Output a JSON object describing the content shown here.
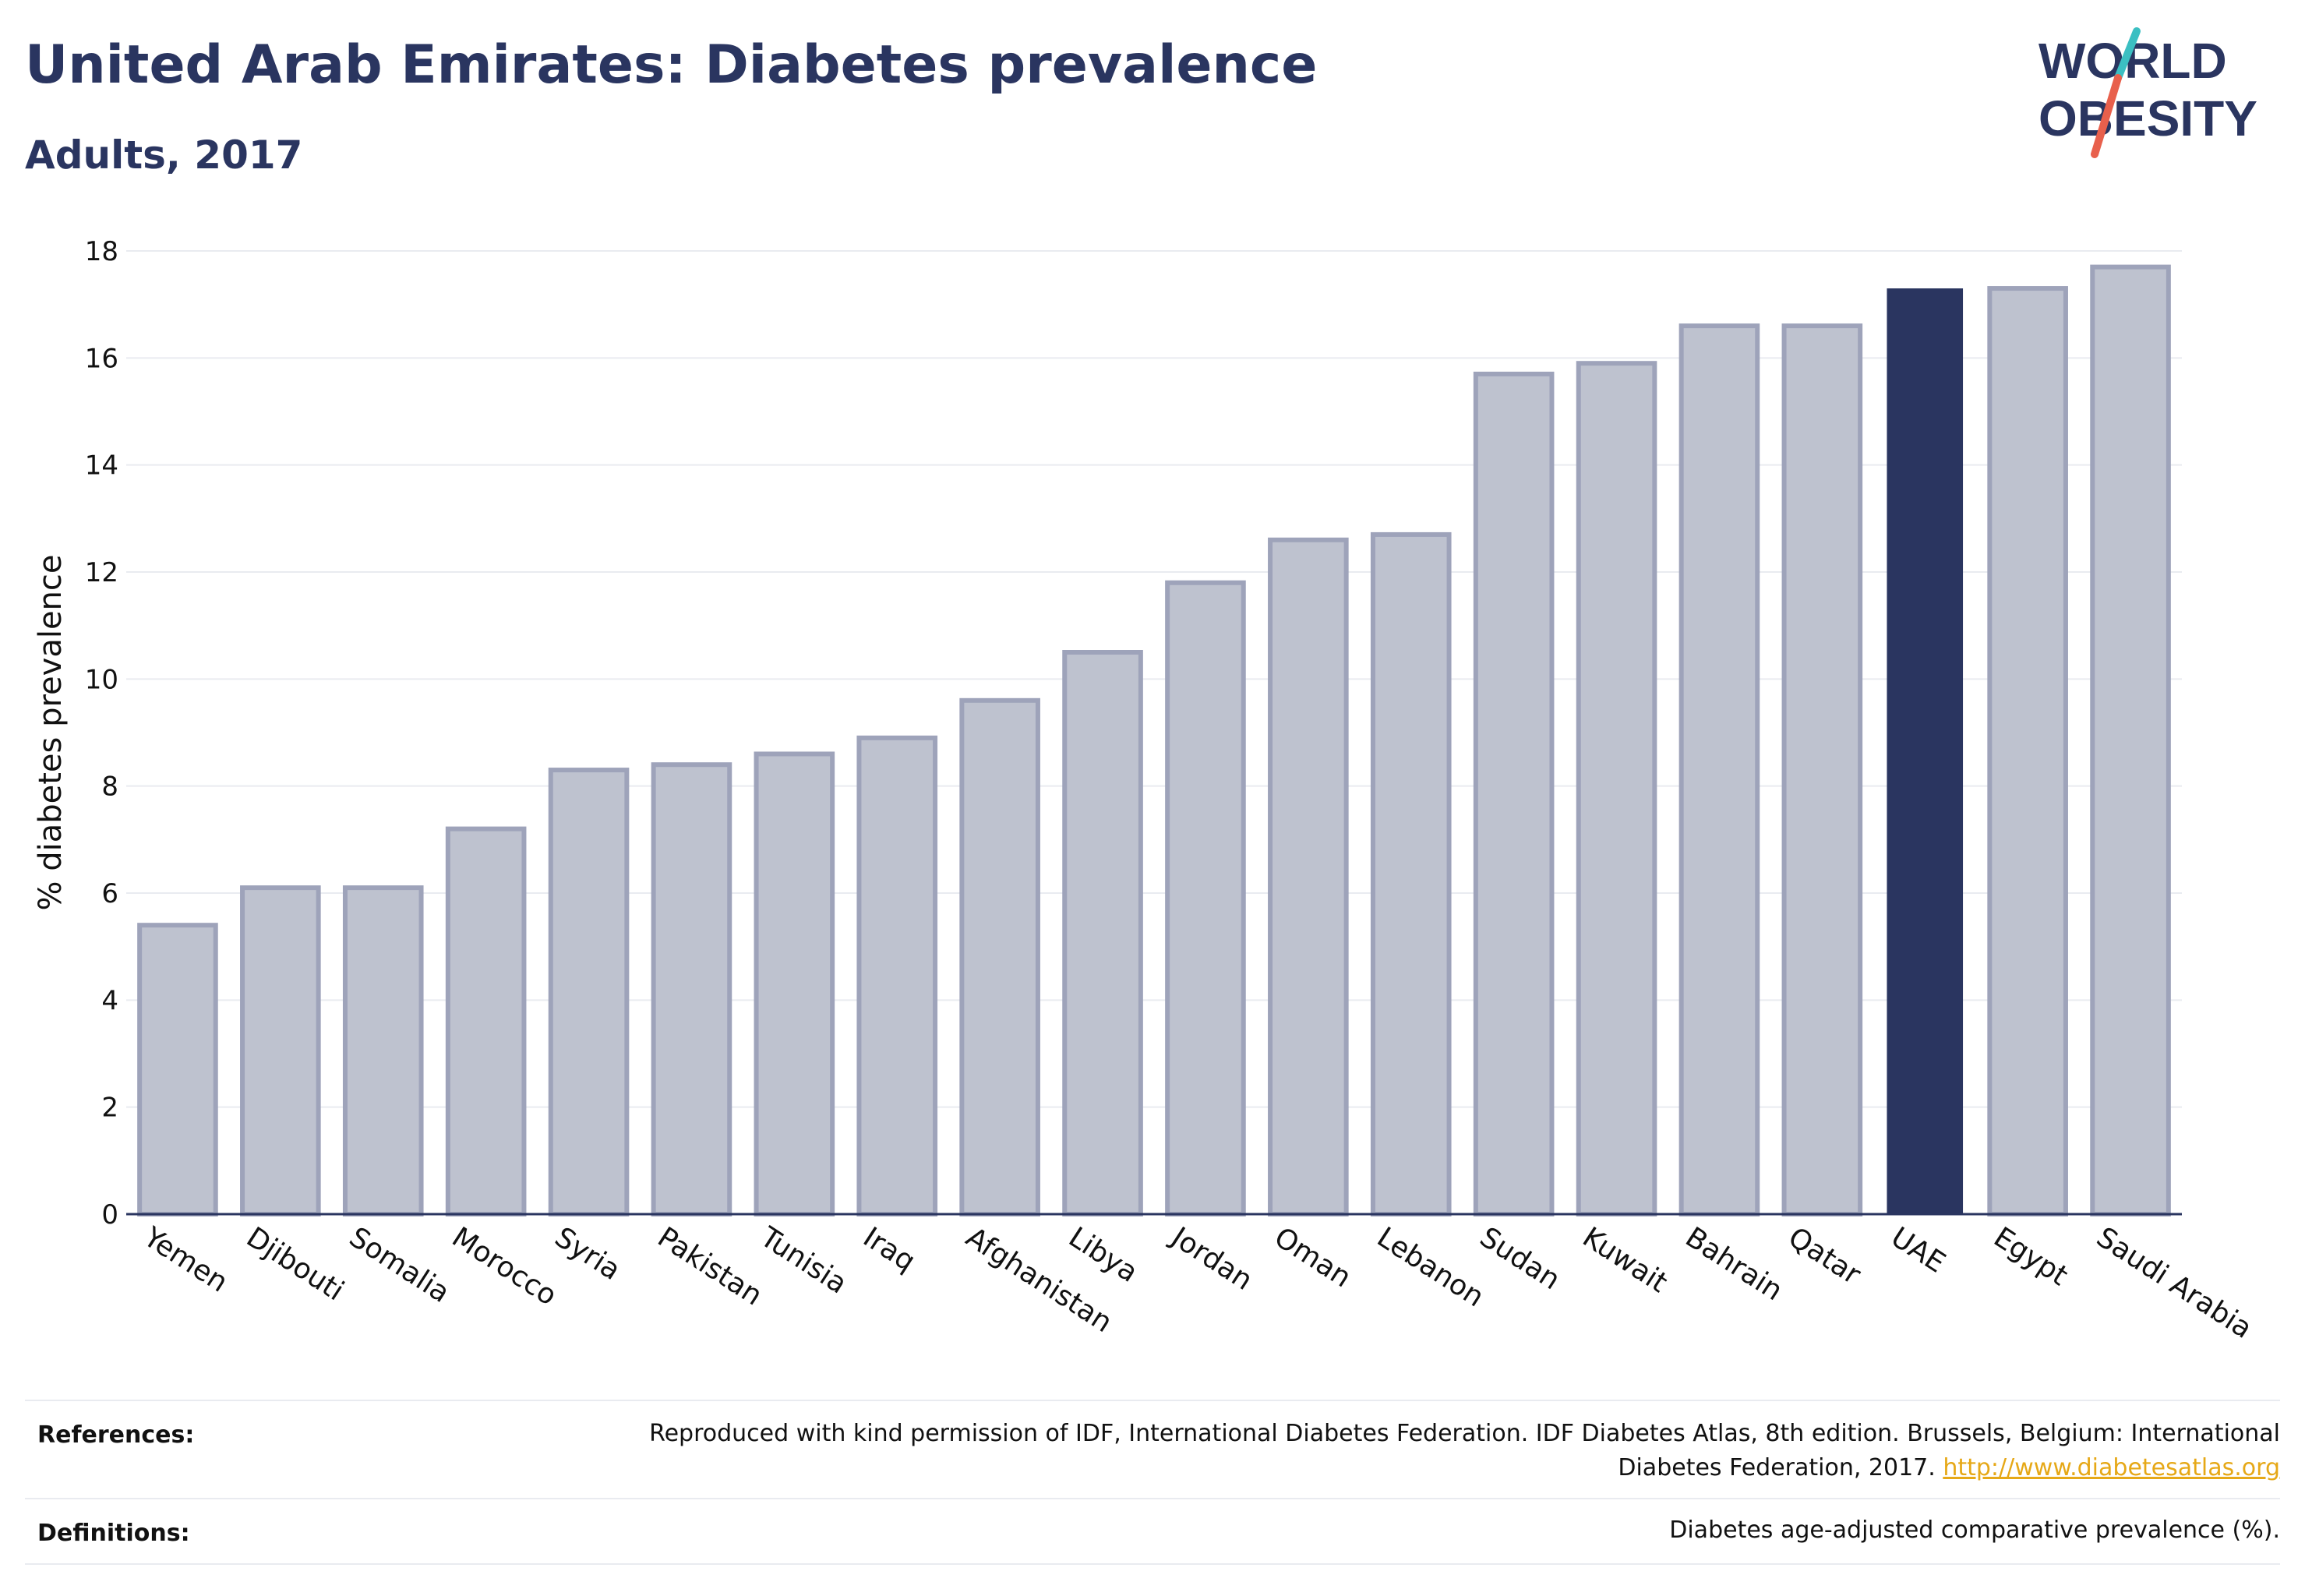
{
  "header": {
    "title": "United Arab Emirates: Diabetes prevalence",
    "subtitle": "Adults, 2017"
  },
  "logo": {
    "line1": "WORLD",
    "line2": "OBESITY",
    "accent_colors": [
      "#3bbfc2",
      "#e8604c"
    ]
  },
  "chart_data": {
    "type": "bar",
    "title": "United Arab Emirates: Diabetes prevalence",
    "subtitle": "Adults, 2017",
    "xlabel": "",
    "ylabel": "% diabetes prevalence",
    "ylim": [
      0,
      18
    ],
    "yticks": [
      0,
      2,
      4,
      6,
      8,
      10,
      12,
      14,
      16,
      18
    ],
    "grid": true,
    "categories": [
      "Yemen",
      "Djibouti",
      "Somalia",
      "Morocco",
      "Syria",
      "Pakistan",
      "Tunisia",
      "Iraq",
      "Afghanistan",
      "Libya",
      "Jordan",
      "Oman",
      "Lebanon",
      "Sudan",
      "Kuwait",
      "Bahrain",
      "Qatar",
      "UAE",
      "Egypt",
      "Saudi Arabia"
    ],
    "values": [
      5.4,
      6.1,
      6.1,
      7.2,
      8.3,
      8.4,
      8.6,
      8.9,
      9.6,
      10.5,
      11.8,
      12.6,
      12.7,
      15.7,
      15.9,
      16.6,
      16.6,
      17.3,
      17.3,
      17.7
    ],
    "highlight": "UAE",
    "colors": {
      "bar_fill": "#bec2cf",
      "bar_stroke": "#9ea3ba",
      "highlight_fill": "#2a3560",
      "grid": "#e9ebf0",
      "axis": "#2a3560"
    }
  },
  "footer": {
    "references_label": "References:",
    "references_text": "Reproduced with kind permission of IDF, International Diabetes Federation. IDF Diabetes Atlas, 8th edition. Brussels, Belgium: International Diabetes Federation, 2017.",
    "references_link": "http://www.diabetesatlas.org",
    "definitions_label": "Definitions:",
    "definitions_text": "Diabetes age-adjusted comparative prevalence (%)."
  }
}
